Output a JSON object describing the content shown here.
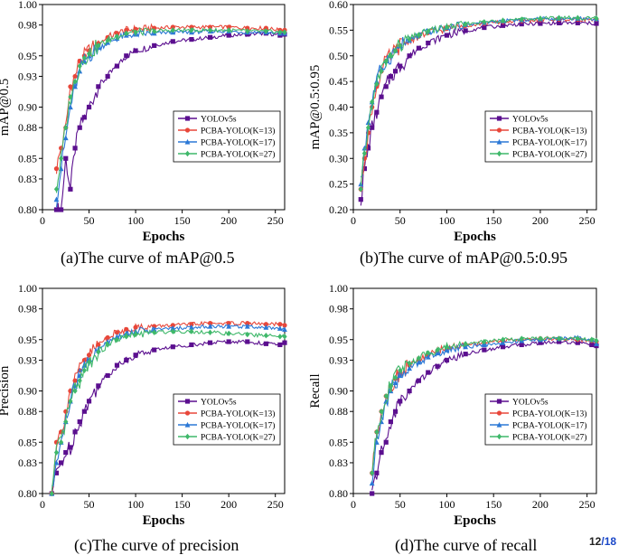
{
  "page": {
    "current": "12",
    "separator": "/",
    "total": "18"
  },
  "chart_data": [
    {
      "type": "line",
      "caption": "(a)The curve of mAP@0.5",
      "xlabel": "Epochs",
      "ylabel": "mAP@0.5",
      "xlim": [
        0,
        260
      ],
      "ylim": [
        0.8,
        1.0
      ],
      "xticks": [
        0,
        50,
        100,
        150,
        200,
        250
      ],
      "yticks": [
        0.8,
        0.83,
        0.85,
        0.88,
        0.9,
        0.93,
        0.95,
        0.98,
        1.0
      ],
      "ytick_labels": [
        "0.80",
        "0.83",
        "0.85",
        "0.88",
        "0.90",
        "0.93",
        "0.95",
        "0.98",
        "1.00"
      ],
      "legend_position": "center-right",
      "series": [
        {
          "name": "YOLOv5s",
          "color": "#5b0f8f",
          "marker": "square",
          "x": [
            15,
            20,
            25,
            30,
            35,
            40,
            45,
            50,
            60,
            70,
            80,
            90,
            100,
            120,
            140,
            160,
            180,
            200,
            220,
            240,
            255,
            260
          ],
          "y": [
            0.8,
            0.8,
            0.85,
            0.82,
            0.86,
            0.88,
            0.89,
            0.9,
            0.92,
            0.93,
            0.94,
            0.95,
            0.955,
            0.96,
            0.964,
            0.966,
            0.968,
            0.97,
            0.971,
            0.972,
            0.97,
            0.971
          ]
        },
        {
          "name": "PCBA-YOLO(K=13)",
          "color": "#e8473a",
          "marker": "circle",
          "x": [
            15,
            20,
            25,
            30,
            35,
            40,
            45,
            50,
            60,
            70,
            80,
            90,
            100,
            120,
            140,
            160,
            180,
            200,
            220,
            240,
            255,
            260
          ],
          "y": [
            0.84,
            0.86,
            0.88,
            0.92,
            0.93,
            0.945,
            0.95,
            0.955,
            0.962,
            0.968,
            0.972,
            0.975,
            0.976,
            0.977,
            0.978,
            0.978,
            0.978,
            0.978,
            0.977,
            0.977,
            0.975,
            0.975
          ]
        },
        {
          "name": "PCBA-YOLO(K=17)",
          "color": "#2b78d6",
          "marker": "triangle",
          "x": [
            15,
            20,
            25,
            30,
            35,
            40,
            45,
            50,
            60,
            70,
            80,
            90,
            100,
            120,
            140,
            160,
            180,
            200,
            220,
            240,
            255,
            260
          ],
          "y": [
            0.81,
            0.84,
            0.87,
            0.9,
            0.92,
            0.935,
            0.945,
            0.95,
            0.958,
            0.963,
            0.967,
            0.97,
            0.971,
            0.972,
            0.973,
            0.973,
            0.974,
            0.974,
            0.973,
            0.973,
            0.972,
            0.972
          ]
        },
        {
          "name": "PCBA-YOLO(K=27)",
          "color": "#3fb86a",
          "marker": "diamond",
          "x": [
            15,
            20,
            25,
            30,
            35,
            40,
            45,
            50,
            60,
            70,
            80,
            90,
            100,
            120,
            140,
            160,
            180,
            200,
            220,
            240,
            255,
            260
          ],
          "y": [
            0.82,
            0.85,
            0.88,
            0.91,
            0.925,
            0.94,
            0.948,
            0.952,
            0.96,
            0.965,
            0.969,
            0.972,
            0.973,
            0.974,
            0.975,
            0.975,
            0.975,
            0.975,
            0.974,
            0.974,
            0.973,
            0.973
          ]
        }
      ]
    },
    {
      "type": "line",
      "caption": "(b)The curve of mAP@0.5:0.95",
      "xlabel": "Epochs",
      "ylabel": "mAP@0.5:0.95",
      "xlim": [
        0,
        260
      ],
      "ylim": [
        0.2,
        0.6
      ],
      "xticks": [
        0,
        50,
        100,
        150,
        200,
        250
      ],
      "yticks": [
        0.2,
        0.25,
        0.3,
        0.35,
        0.4,
        0.45,
        0.5,
        0.55,
        0.6
      ],
      "ytick_labels": [
        "0.20",
        "0.25",
        "0.30",
        "0.35",
        "0.40",
        "0.45",
        "0.50",
        "0.55",
        "0.60"
      ],
      "legend_position": "center-right",
      "series": [
        {
          "name": "YOLOv5s",
          "color": "#5b0f8f",
          "marker": "square",
          "x": [
            8,
            12,
            16,
            20,
            25,
            30,
            35,
            40,
            45,
            50,
            60,
            70,
            80,
            100,
            120,
            140,
            160,
            180,
            200,
            220,
            240,
            260
          ],
          "y": [
            0.22,
            0.28,
            0.32,
            0.36,
            0.39,
            0.42,
            0.44,
            0.46,
            0.47,
            0.48,
            0.5,
            0.515,
            0.525,
            0.54,
            0.549,
            0.555,
            0.559,
            0.562,
            0.563,
            0.564,
            0.564,
            0.563
          ]
        },
        {
          "name": "PCBA-YOLO(K=13)",
          "color": "#e8473a",
          "marker": "circle",
          "x": [
            8,
            12,
            16,
            20,
            25,
            30,
            35,
            40,
            45,
            50,
            60,
            70,
            80,
            100,
            120,
            140,
            160,
            180,
            200,
            220,
            240,
            260
          ],
          "y": [
            0.24,
            0.3,
            0.35,
            0.4,
            0.44,
            0.47,
            0.49,
            0.5,
            0.51,
            0.52,
            0.53,
            0.538,
            0.545,
            0.553,
            0.559,
            0.563,
            0.566,
            0.568,
            0.57,
            0.571,
            0.571,
            0.571
          ]
        },
        {
          "name": "PCBA-YOLO(K=17)",
          "color": "#2b78d6",
          "marker": "triangle",
          "x": [
            8,
            12,
            16,
            20,
            25,
            30,
            35,
            40,
            45,
            50,
            60,
            70,
            80,
            100,
            120,
            140,
            160,
            180,
            200,
            220,
            240,
            260
          ],
          "y": [
            0.25,
            0.32,
            0.37,
            0.41,
            0.45,
            0.475,
            0.49,
            0.5,
            0.51,
            0.52,
            0.53,
            0.54,
            0.547,
            0.555,
            0.561,
            0.565,
            0.568,
            0.57,
            0.572,
            0.573,
            0.573,
            0.572
          ]
        },
        {
          "name": "PCBA-YOLO(K=27)",
          "color": "#3fb86a",
          "marker": "diamond",
          "x": [
            8,
            12,
            16,
            20,
            25,
            30,
            35,
            40,
            45,
            50,
            60,
            70,
            80,
            100,
            120,
            140,
            160,
            180,
            200,
            220,
            240,
            260
          ],
          "y": [
            0.24,
            0.31,
            0.36,
            0.41,
            0.445,
            0.47,
            0.49,
            0.5,
            0.51,
            0.52,
            0.532,
            0.541,
            0.548,
            0.556,
            0.562,
            0.566,
            0.569,
            0.571,
            0.573,
            0.574,
            0.574,
            0.573
          ]
        }
      ]
    },
    {
      "type": "line",
      "caption": "(c)The curve of precision",
      "xlabel": "Epochs",
      "ylabel": "Precision",
      "xlim": [
        0,
        260
      ],
      "ylim": [
        0.8,
        1.0
      ],
      "xticks": [
        0,
        50,
        100,
        150,
        200,
        250
      ],
      "yticks": [
        0.8,
        0.83,
        0.85,
        0.88,
        0.9,
        0.93,
        0.95,
        0.98,
        1.0
      ],
      "ytick_labels": [
        "0.80",
        "0.83",
        "0.85",
        "0.88",
        "0.90",
        "0.93",
        "0.95",
        "0.98",
        "1.00"
      ],
      "legend_position": "bottom-right",
      "series": [
        {
          "name": "YOLOv5s",
          "color": "#5b0f8f",
          "marker": "square",
          "x": [
            10,
            15,
            20,
            25,
            30,
            35,
            40,
            45,
            50,
            60,
            70,
            80,
            90,
            100,
            120,
            140,
            160,
            180,
            200,
            220,
            240,
            255,
            260
          ],
          "y": [
            0.8,
            0.82,
            0.83,
            0.84,
            0.845,
            0.86,
            0.87,
            0.88,
            0.89,
            0.905,
            0.915,
            0.925,
            0.93,
            0.935,
            0.94,
            0.943,
            0.945,
            0.947,
            0.948,
            0.948,
            0.946,
            0.945,
            0.947
          ]
        },
        {
          "name": "PCBA-YOLO(K=13)",
          "color": "#e8473a",
          "marker": "circle",
          "x": [
            10,
            15,
            20,
            25,
            30,
            35,
            40,
            45,
            50,
            60,
            70,
            80,
            90,
            100,
            120,
            140,
            160,
            180,
            200,
            220,
            240,
            255,
            260
          ],
          "y": [
            0.8,
            0.85,
            0.86,
            0.88,
            0.9,
            0.91,
            0.92,
            0.93,
            0.935,
            0.945,
            0.952,
            0.957,
            0.96,
            0.962,
            0.963,
            0.964,
            0.965,
            0.966,
            0.966,
            0.966,
            0.965,
            0.965,
            0.964
          ]
        },
        {
          "name": "PCBA-YOLO(K=17)",
          "color": "#2b78d6",
          "marker": "triangle",
          "x": [
            10,
            15,
            20,
            25,
            30,
            35,
            40,
            45,
            50,
            60,
            70,
            80,
            90,
            100,
            120,
            140,
            160,
            180,
            200,
            220,
            240,
            255,
            260
          ],
          "y": [
            0.8,
            0.83,
            0.85,
            0.87,
            0.89,
            0.905,
            0.915,
            0.925,
            0.93,
            0.94,
            0.948,
            0.953,
            0.956,
            0.958,
            0.96,
            0.961,
            0.962,
            0.963,
            0.963,
            0.963,
            0.962,
            0.961,
            0.96
          ]
        },
        {
          "name": "PCBA-YOLO(K=27)",
          "color": "#3fb86a",
          "marker": "diamond",
          "x": [
            10,
            15,
            20,
            25,
            30,
            35,
            40,
            45,
            50,
            60,
            70,
            80,
            90,
            100,
            120,
            140,
            160,
            180,
            200,
            220,
            240,
            255,
            260
          ],
          "y": [
            0.8,
            0.84,
            0.85,
            0.87,
            0.89,
            0.9,
            0.91,
            0.92,
            0.928,
            0.938,
            0.945,
            0.95,
            0.953,
            0.955,
            0.957,
            0.958,
            0.958,
            0.957,
            0.956,
            0.955,
            0.954,
            0.953,
            0.953
          ]
        }
      ]
    },
    {
      "type": "line",
      "caption": "(d)The curve of recall",
      "xlabel": "Epochs",
      "ylabel": "Recall",
      "xlim": [
        0,
        260
      ],
      "ylim": [
        0.8,
        1.0
      ],
      "xticks": [
        0,
        50,
        100,
        150,
        200,
        250
      ],
      "yticks": [
        0.8,
        0.83,
        0.85,
        0.88,
        0.9,
        0.93,
        0.95,
        0.98,
        1.0
      ],
      "ytick_labels": [
        "0.80",
        "0.83",
        "0.85",
        "0.88",
        "0.90",
        "0.93",
        "0.95",
        "0.98",
        "1.00"
      ],
      "legend_position": "bottom-right",
      "series": [
        {
          "name": "YOLOv5s",
          "color": "#5b0f8f",
          "marker": "square",
          "x": [
            20,
            25,
            30,
            35,
            40,
            45,
            50,
            60,
            70,
            80,
            90,
            100,
            120,
            140,
            160,
            180,
            200,
            220,
            240,
            255,
            260
          ],
          "y": [
            0.8,
            0.82,
            0.84,
            0.85,
            0.87,
            0.88,
            0.89,
            0.9,
            0.91,
            0.918,
            0.924,
            0.93,
            0.936,
            0.94,
            0.943,
            0.945,
            0.947,
            0.948,
            0.947,
            0.945,
            0.944
          ]
        },
        {
          "name": "PCBA-YOLO(K=13)",
          "color": "#e8473a",
          "marker": "circle",
          "x": [
            20,
            25,
            30,
            35,
            40,
            45,
            50,
            60,
            70,
            80,
            90,
            100,
            120,
            140,
            160,
            180,
            200,
            220,
            240,
            255,
            260
          ],
          "y": [
            0.82,
            0.86,
            0.88,
            0.895,
            0.905,
            0.912,
            0.918,
            0.925,
            0.93,
            0.935,
            0.939,
            0.942,
            0.945,
            0.947,
            0.949,
            0.95,
            0.951,
            0.951,
            0.95,
            0.949,
            0.948
          ]
        },
        {
          "name": "PCBA-YOLO(K=17)",
          "color": "#2b78d6",
          "marker": "triangle",
          "x": [
            20,
            25,
            30,
            35,
            40,
            45,
            50,
            60,
            70,
            80,
            90,
            100,
            120,
            140,
            160,
            180,
            200,
            220,
            240,
            255,
            260
          ],
          "y": [
            0.81,
            0.85,
            0.87,
            0.89,
            0.9,
            0.908,
            0.915,
            0.922,
            0.928,
            0.933,
            0.937,
            0.94,
            0.943,
            0.945,
            0.947,
            0.949,
            0.95,
            0.951,
            0.952,
            0.95,
            0.946
          ]
        },
        {
          "name": "PCBA-YOLO(K=27)",
          "color": "#3fb86a",
          "marker": "diamond",
          "x": [
            20,
            25,
            30,
            35,
            40,
            45,
            50,
            60,
            70,
            80,
            90,
            100,
            120,
            140,
            160,
            180,
            200,
            220,
            240,
            255,
            260
          ],
          "y": [
            0.82,
            0.86,
            0.88,
            0.895,
            0.905,
            0.913,
            0.92,
            0.927,
            0.932,
            0.937,
            0.94,
            0.943,
            0.946,
            0.948,
            0.95,
            0.951,
            0.951,
            0.951,
            0.951,
            0.95,
            0.949
          ]
        }
      ]
    }
  ]
}
